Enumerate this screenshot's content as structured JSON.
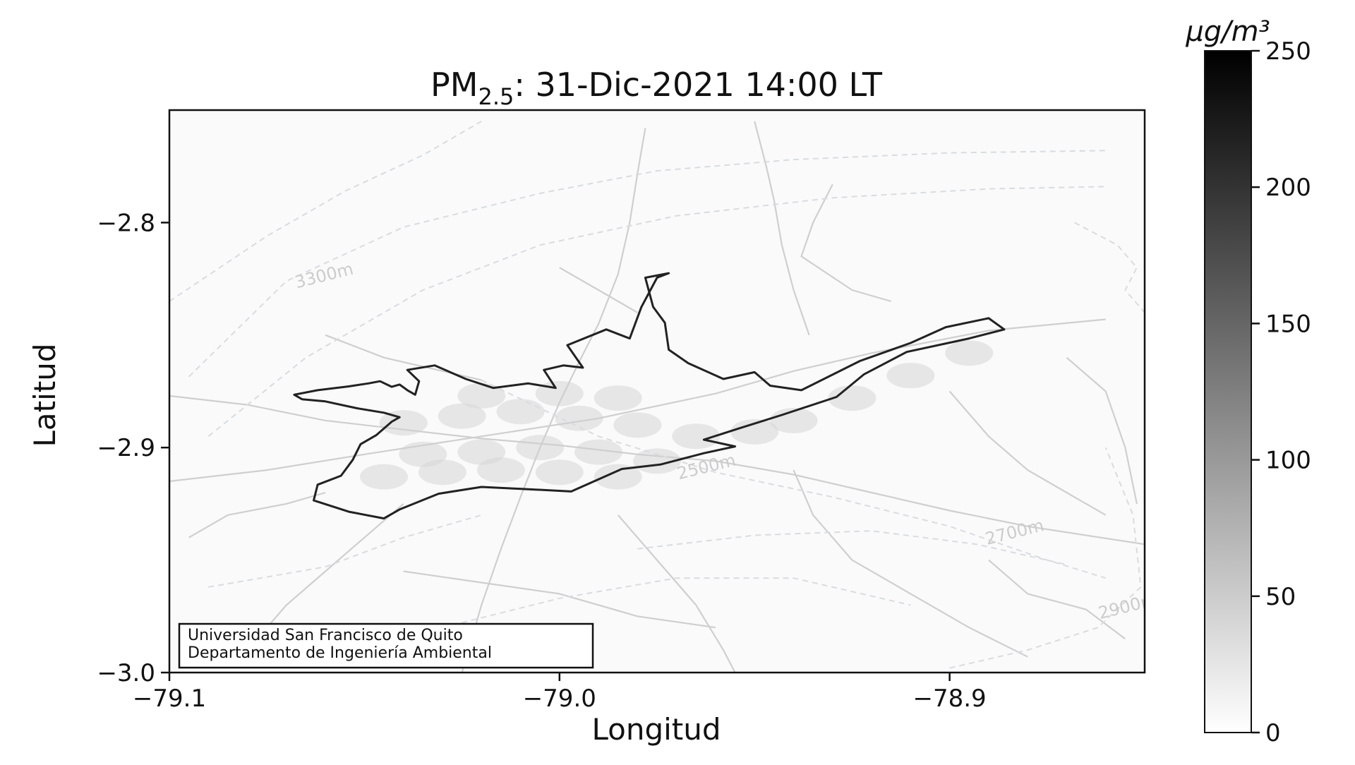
{
  "title": {
    "prefix": "PM",
    "subscript": "2.5",
    "suffix": ": 31-Dic-2021 14:00 LT"
  },
  "axes": {
    "xlabel": "Longitud",
    "ylabel": "Latitud",
    "x_ticks": [
      {
        "value": -79.1,
        "label": "−79.1"
      },
      {
        "value": -79.0,
        "label": "−79.0"
      },
      {
        "value": -78.9,
        "label": "−78.9"
      }
    ],
    "y_ticks": [
      {
        "value": -2.8,
        "label": "−2.8"
      },
      {
        "value": -2.9,
        "label": "−2.9"
      },
      {
        "value": -3.0,
        "label": "−3.0"
      }
    ],
    "xlim": [
      -79.1,
      -78.85
    ],
    "ylim": [
      -3.0,
      -2.75
    ]
  },
  "colorbar": {
    "unit_label": "μg/m³",
    "min": 0,
    "max": 250,
    "ticks": [
      {
        "value": 0,
        "label": "0"
      },
      {
        "value": 50,
        "label": "50"
      },
      {
        "value": 100,
        "label": "100"
      },
      {
        "value": 150,
        "label": "150"
      },
      {
        "value": 200,
        "label": "200"
      },
      {
        "value": 250,
        "label": "250"
      }
    ],
    "color_low": "#ffffff",
    "color_high": "#000000"
  },
  "contour_labels": [
    {
      "text": "3300m",
      "lon": -79.06,
      "lat": -2.826
    },
    {
      "text": "2500m",
      "lon": -78.962,
      "lat": -2.911
    },
    {
      "text": "2700m",
      "lon": -78.883,
      "lat": -2.94
    },
    {
      "text": "2900m",
      "lon": -78.854,
      "lat": -2.973
    }
  ],
  "credit_box": {
    "line1": "Universidad San Francisco de Quito",
    "line2": "Departamento de Ingeniería Ambiental"
  },
  "boundary": {
    "name": "urban-boundary",
    "color": "#222222",
    "points": [
      [
        -79.068,
        -2.8765
      ],
      [
        -79.062,
        -2.8745
      ],
      [
        -79.054,
        -2.8728
      ],
      [
        -79.049,
        -2.8715
      ],
      [
        -79.046,
        -2.8705
      ],
      [
        -79.043,
        -2.873
      ],
      [
        -79.041,
        -2.872
      ],
      [
        -79.039,
        -2.8745
      ],
      [
        -79.037,
        -2.8765
      ],
      [
        -79.036,
        -2.8705
      ],
      [
        -79.039,
        -2.8655
      ],
      [
        -79.032,
        -2.8635
      ],
      [
        -79.024,
        -2.8695
      ],
      [
        -79.017,
        -2.8735
      ],
      [
        -79.008,
        -2.8715
      ],
      [
        -79.001,
        -2.8735
      ],
      [
        -79.004,
        -2.8655
      ],
      [
        -78.999,
        -2.8635
      ],
      [
        -78.994,
        -2.8645
      ],
      [
        -78.998,
        -2.8545
      ],
      [
        -78.988,
        -2.8475
      ],
      [
        -78.982,
        -2.8515
      ],
      [
        -78.979,
        -2.8375
      ],
      [
        -78.975,
        -2.8245
      ],
      [
        -78.972,
        -2.8225
      ],
      [
        -78.978,
        -2.8245
      ],
      [
        -78.976,
        -2.8375
      ],
      [
        -78.973,
        -2.8445
      ],
      [
        -78.972,
        -2.8565
      ],
      [
        -78.967,
        -2.8625
      ],
      [
        -78.958,
        -2.8695
      ],
      [
        -78.95,
        -2.8665
      ],
      [
        -78.946,
        -2.8725
      ],
      [
        -78.938,
        -2.8745
      ],
      [
        -78.923,
        -2.8615
      ],
      [
        -78.91,
        -2.8535
      ],
      [
        -78.901,
        -2.8465
      ],
      [
        -78.89,
        -2.8425
      ],
      [
        -78.886,
        -2.8475
      ],
      [
        -78.895,
        -2.8515
      ],
      [
        -78.911,
        -2.8575
      ],
      [
        -78.922,
        -2.8675
      ],
      [
        -78.929,
        -2.8775
      ],
      [
        -78.943,
        -2.8855
      ],
      [
        -78.954,
        -2.8915
      ],
      [
        -78.963,
        -2.8965
      ],
      [
        -78.955,
        -2.8995
      ],
      [
        -78.963,
        -2.9025
      ],
      [
        -78.974,
        -2.9075
      ],
      [
        -78.984,
        -2.9095
      ],
      [
        -78.997,
        -2.9195
      ],
      [
        -79.008,
        -2.9185
      ],
      [
        -79.02,
        -2.9175
      ],
      [
        -79.031,
        -2.9205
      ],
      [
        -79.041,
        -2.9275
      ],
      [
        -79.045,
        -2.9315
      ],
      [
        -79.054,
        -2.9285
      ],
      [
        -79.063,
        -2.9235
      ],
      [
        -79.062,
        -2.9165
      ],
      [
        -79.056,
        -2.9125
      ],
      [
        -79.053,
        -2.9055
      ],
      [
        -79.051,
        -2.8985
      ],
      [
        -79.047,
        -2.8945
      ],
      [
        -79.043,
        -2.8885
      ],
      [
        -79.041,
        -2.8865
      ],
      [
        -79.045,
        -2.8845
      ],
      [
        -79.052,
        -2.8825
      ],
      [
        -79.06,
        -2.8795
      ],
      [
        -79.066,
        -2.8785
      ],
      [
        -79.068,
        -2.8765
      ]
    ]
  },
  "contours": [
    [
      [
        -79.095,
        -2.8685
      ],
      [
        -79.07,
        -2.826
      ],
      [
        -79.04,
        -2.802
      ],
      [
        -79.005,
        -2.787
      ],
      [
        -78.975,
        -2.777
      ],
      [
        -78.94,
        -2.772
      ],
      [
        -78.9,
        -2.769
      ],
      [
        -78.86,
        -2.768
      ]
    ],
    [
      [
        -79.09,
        -2.895
      ],
      [
        -79.065,
        -2.86
      ],
      [
        -79.035,
        -2.83
      ],
      [
        -79.005,
        -2.81
      ],
      [
        -78.97,
        -2.797
      ],
      [
        -78.93,
        -2.789
      ],
      [
        -78.89,
        -2.785
      ],
      [
        -78.86,
        -2.784
      ]
    ],
    [
      [
        -79.1,
        -2.835
      ],
      [
        -79.075,
        -2.806
      ],
      [
        -79.055,
        -2.786
      ],
      [
        -79.035,
        -2.77
      ],
      [
        -79.02,
        -2.755
      ]
    ],
    [
      [
        -79.02,
        -2.87
      ],
      [
        -78.99,
        -2.895
      ],
      [
        -78.96,
        -2.911
      ],
      [
        -78.93,
        -2.922
      ],
      [
        -78.9,
        -2.935
      ],
      [
        -78.875,
        -2.95
      ],
      [
        -78.86,
        -2.958
      ]
    ],
    [
      [
        -78.98,
        -2.945
      ],
      [
        -78.95,
        -2.939
      ],
      [
        -78.92,
        -2.937
      ],
      [
        -78.893,
        -2.943
      ],
      [
        -78.87,
        -2.952
      ]
    ],
    [
      [
        -78.9,
        -2.998
      ],
      [
        -78.88,
        -2.99
      ],
      [
        -78.862,
        -2.98
      ],
      [
        -78.851,
        -2.962
      ],
      [
        -78.853,
        -2.93
      ],
      [
        -78.86,
        -2.9
      ]
    ],
    [
      [
        -78.868,
        -2.8
      ],
      [
        -78.857,
        -2.81
      ],
      [
        -78.852,
        -2.82
      ],
      [
        -78.855,
        -2.83
      ],
      [
        -78.85,
        -2.84
      ]
    ],
    [
      [
        -79.03,
        -2.98
      ],
      [
        -79.0,
        -2.967
      ],
      [
        -78.97,
        -2.958
      ],
      [
        -78.94,
        -2.958
      ],
      [
        -78.91,
        -2.97
      ]
    ],
    [
      [
        -79.09,
        -2.962
      ],
      [
        -79.06,
        -2.953
      ],
      [
        -79.04,
        -2.94
      ],
      [
        -79.02,
        -2.93
      ]
    ]
  ],
  "roads": [
    [
      [
        -79.1,
        -2.877
      ],
      [
        -79.08,
        -2.881
      ],
      [
        -79.06,
        -2.888
      ],
      [
        -79.04,
        -2.892
      ],
      [
        -79.02,
        -2.896
      ],
      [
        -79.0,
        -2.899
      ],
      [
        -78.98,
        -2.903
      ],
      [
        -78.96,
        -2.906
      ],
      [
        -78.94,
        -2.912
      ],
      [
        -78.92,
        -2.92
      ],
      [
        -78.9,
        -2.928
      ],
      [
        -78.88,
        -2.935
      ],
      [
        -78.85,
        -2.943
      ]
    ],
    [
      [
        -79.1,
        -2.915
      ],
      [
        -79.075,
        -2.91
      ],
      [
        -79.05,
        -2.903
      ],
      [
        -79.02,
        -2.895
      ],
      [
        -78.99,
        -2.887
      ],
      [
        -78.96,
        -2.876
      ],
      [
        -78.94,
        -2.866
      ],
      [
        -78.92,
        -2.858
      ],
      [
        -78.89,
        -2.848
      ],
      [
        -78.86,
        -2.843
      ]
    ],
    [
      [
        -78.978,
        -2.758
      ],
      [
        -78.98,
        -2.778
      ],
      [
        -78.982,
        -2.8
      ],
      [
        -78.985,
        -2.823
      ],
      [
        -78.99,
        -2.845
      ],
      [
        -78.995,
        -2.862
      ],
      [
        -79.0,
        -2.88
      ],
      [
        -79.005,
        -2.9
      ],
      [
        -79.01,
        -2.922
      ],
      [
        -79.015,
        -2.945
      ],
      [
        -79.02,
        -2.97
      ],
      [
        -79.025,
        -3.0
      ]
    ],
    [
      [
        -78.95,
        -2.755
      ],
      [
        -78.947,
        -2.775
      ],
      [
        -78.945,
        -2.79
      ],
      [
        -78.943,
        -2.81
      ],
      [
        -78.94,
        -2.83
      ],
      [
        -78.936,
        -2.85
      ]
    ],
    [
      [
        -79.08,
        -2.99
      ],
      [
        -79.07,
        -2.97
      ],
      [
        -79.06,
        -2.955
      ],
      [
        -79.05,
        -2.94
      ],
      [
        -79.04,
        -2.925
      ]
    ],
    [
      [
        -78.985,
        -2.93
      ],
      [
        -78.975,
        -2.95
      ],
      [
        -78.965,
        -2.97
      ],
      [
        -78.958,
        -2.99
      ],
      [
        -78.955,
        -3.0
      ]
    ],
    [
      [
        -78.94,
        -2.91
      ],
      [
        -78.935,
        -2.93
      ],
      [
        -78.925,
        -2.95
      ],
      [
        -78.91,
        -2.965
      ],
      [
        -78.895,
        -2.98
      ],
      [
        -78.88,
        -2.993
      ]
    ],
    [
      [
        -78.9,
        -2.875
      ],
      [
        -78.89,
        -2.895
      ],
      [
        -78.88,
        -2.91
      ],
      [
        -78.87,
        -2.92
      ],
      [
        -78.86,
        -2.93
      ]
    ],
    [
      [
        -78.93,
        -2.783
      ],
      [
        -78.935,
        -2.8
      ],
      [
        -78.938,
        -2.815
      ],
      [
        -78.925,
        -2.83
      ],
      [
        -78.915,
        -2.835
      ]
    ],
    [
      [
        -79.095,
        -2.94
      ],
      [
        -79.085,
        -2.93
      ],
      [
        -79.07,
        -2.925
      ],
      [
        -79.06,
        -2.92
      ]
    ],
    [
      [
        -79.06,
        -2.85
      ],
      [
        -79.045,
        -2.86
      ],
      [
        -79.03,
        -2.866
      ],
      [
        -79.02,
        -2.87
      ]
    ],
    [
      [
        -79.0,
        -2.82
      ],
      [
        -78.99,
        -2.83
      ],
      [
        -78.98,
        -2.84
      ]
    ],
    [
      [
        -78.87,
        -2.86
      ],
      [
        -78.86,
        -2.875
      ],
      [
        -78.855,
        -2.9
      ],
      [
        -78.852,
        -2.925
      ]
    ],
    [
      [
        -78.89,
        -2.95
      ],
      [
        -78.88,
        -2.965
      ],
      [
        -78.865,
        -2.972
      ],
      [
        -78.855,
        -2.985
      ]
    ],
    [
      [
        -79.04,
        -2.955
      ],
      [
        -79.02,
        -2.96
      ],
      [
        -79.0,
        -2.965
      ],
      [
        -78.98,
        -2.975
      ],
      [
        -78.96,
        -2.98
      ]
    ]
  ],
  "urban_patches": [
    [
      -79.04,
      -2.889
    ],
    [
      -79.025,
      -2.886
    ],
    [
      -79.01,
      -2.884
    ],
    [
      -78.995,
      -2.887
    ],
    [
      -78.98,
      -2.89
    ],
    [
      -78.965,
      -2.895
    ],
    [
      -78.95,
      -2.893
    ],
    [
      -79.035,
      -2.903
    ],
    [
      -79.02,
      -2.902
    ],
    [
      -79.005,
      -2.9
    ],
    [
      -78.99,
      -2.902
    ],
    [
      -78.975,
      -2.906
    ],
    [
      -79.045,
      -2.913
    ],
    [
      -79.03,
      -2.911
    ],
    [
      -79.015,
      -2.91
    ],
    [
      -79.0,
      -2.911
    ],
    [
      -78.985,
      -2.913
    ],
    [
      -78.94,
      -2.888
    ],
    [
      -78.925,
      -2.878
    ],
    [
      -78.91,
      -2.868
    ],
    [
      -78.895,
      -2.858
    ],
    [
      -79.02,
      -2.877
    ],
    [
      -79.0,
      -2.876
    ],
    [
      -78.985,
      -2.878
    ]
  ]
}
